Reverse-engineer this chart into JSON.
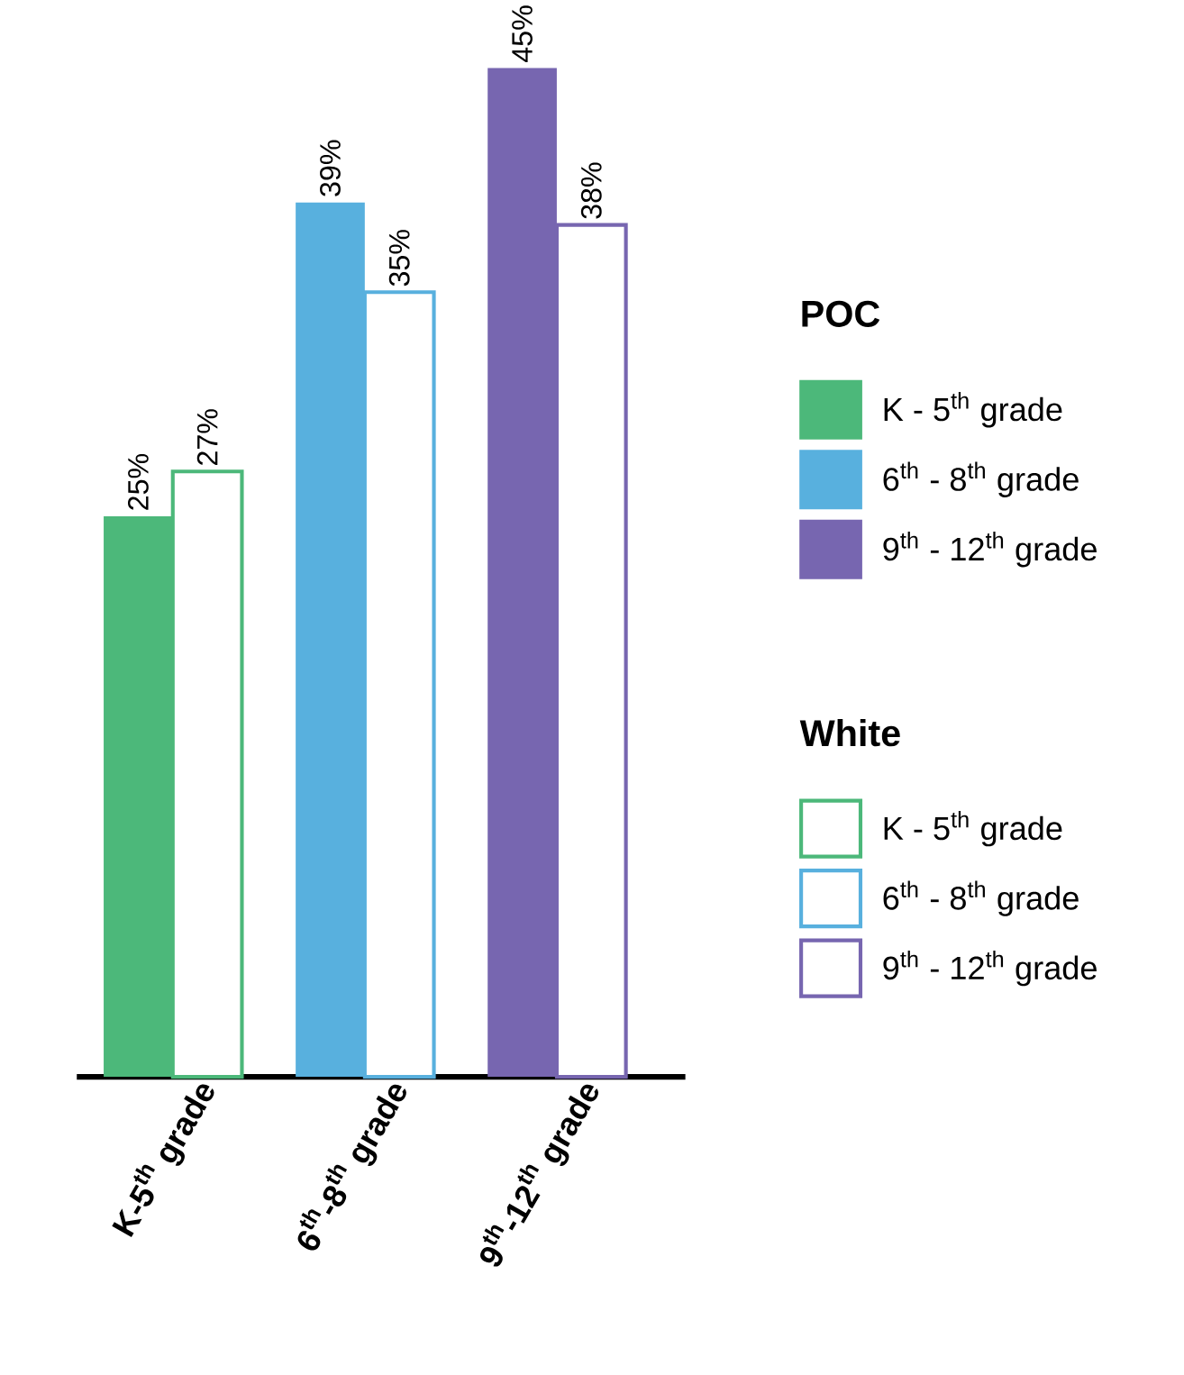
{
  "chart_data": {
    "type": "bar",
    "categories": [
      "\\textbf{K-5}^{\\textbf{th}}\\textbf{ grade}",
      "\\textbf{6}^{\\textbf{th}}\\textbf{-8}^{\\textbf{th}}\\textbf{ grade}",
      "\\textbf{9}^{\\textbf{th}}\\textbf{-12}^{\\textbf{th}}\\textbf{ grade}"
    ],
    "series": [
      {
        "name": "POC",
        "colors": [
          "#4cb87a",
          "#58b0de",
          "#7766b0"
        ],
        "values": [
          25,
          39,
          45
        ],
        "value_labels": [
          "25%",
          "39%",
          "45%"
        ]
      },
      {
        "name": "White",
        "colors": [
          "#4cb87a",
          "#58b0de",
          "#7766b0"
        ],
        "values": [
          27,
          35,
          38
        ],
        "value_labels": [
          "27%",
          "35%",
          "38%"
        ]
      }
    ],
    "annotations": [
      "K - 5$^{th}$ grade",
      "6$^{th}$ - 8$^{th}$ grade",
      "9$^{th}$ - 12$^{th}$ grade",
      "K - 5$^{th}$ grade",
      "6$^{th}$ - 8$^{th}$ grade",
      "9$^{th}$ - 12$^{th}$ grade"
    ],
    "legend": "right"
  }
}
